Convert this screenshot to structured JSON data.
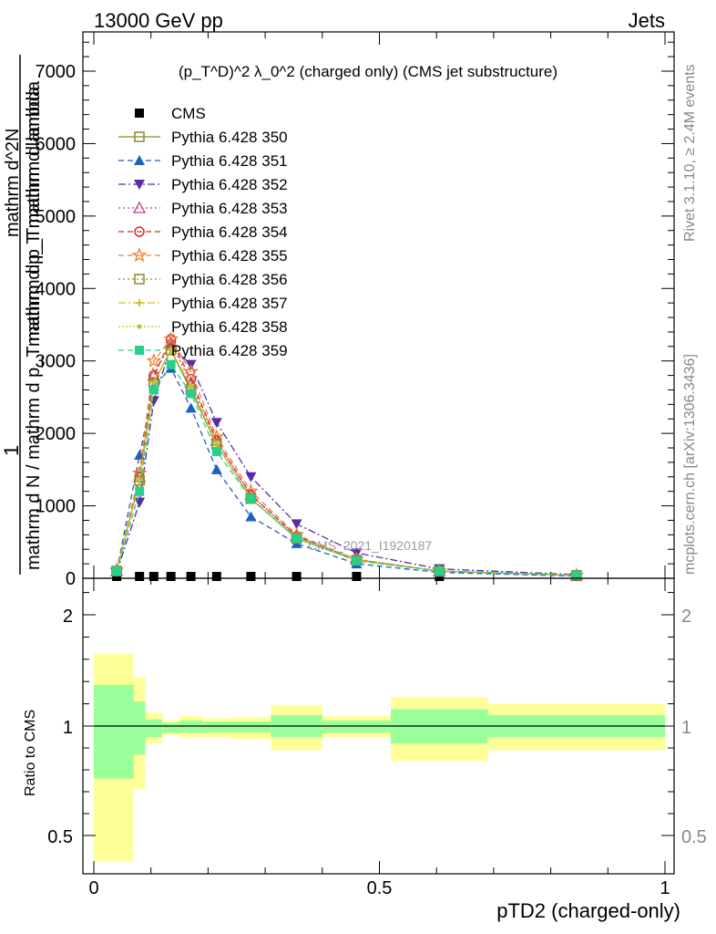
{
  "header": {
    "energy": "13000 GeV pp",
    "category": "Jets",
    "title": "(p_T^D)^2 λ_0^2 (charged only) (CMS jet substructure)",
    "side_rivet": "Rivet 3.1.10, ≥ 2.4M events",
    "side_mcplots": "mcplots.cern.ch [arXiv:1306.3436]",
    "watermark": "CMS_2021_I1920187"
  },
  "colors": {
    "CMS": "#000000",
    "350": "#8a8a2e",
    "351": "#1f5fbf",
    "352": "#5a2aa8",
    "353": "#c03a8a",
    "354": "#d42a2a",
    "355": "#f07d2a",
    "356": "#8a8a2e",
    "357": "#d4c02a",
    "358": "#b8c82a",
    "359": "#2acf8a",
    "band_outer": "#ffff99",
    "band_inner": "#99ff99"
  },
  "chart_data": [
    {
      "type": "line",
      "panel": "main",
      "ylabel": "1 / mathrm d N / mathrm d p_T mathrm d p_T mathrm d lambda   mathrm d^2N",
      "ylabel_parts": {
        "numerator_one": "1",
        "denominator": "mathrm d N / mathrm d p_T mathrm d p_T mathrm d lambda",
        "overlay_a": "mathrm d^2N",
        "overlay_b": "mathrm d p_T mathrm d lambda"
      },
      "ylim": [
        0,
        7500
      ],
      "xlim": [
        -0.02,
        1.02
      ],
      "yticks": [
        0,
        1000,
        2000,
        3000,
        4000,
        5000,
        6000,
        7000
      ],
      "ytick_labels": [
        "0",
        "1000",
        "2000",
        "3000",
        "4000",
        "5000",
        "6000",
        "7000"
      ],
      "x": [
        0.04,
        0.08,
        0.105,
        0.135,
        0.17,
        0.215,
        0.275,
        0.355,
        0.46,
        0.605,
        0.845
      ],
      "series": [
        {
          "name": "CMS",
          "marker": "square-filled",
          "values": [
            0,
            0,
            0,
            0,
            0,
            0,
            0,
            0,
            0,
            0,
            0
          ]
        },
        {
          "name": "Pythia 6.428 350",
          "marker": "square-open",
          "dash": "",
          "values": [
            100,
            1350,
            2700,
            3150,
            2600,
            1850,
            1100,
            550,
            250,
            100,
            40
          ]
        },
        {
          "name": "Pythia 6.428 351",
          "marker": "triangle-up",
          "dash": "6,4",
          "values": [
            100,
            1700,
            2650,
            2900,
            2350,
            1500,
            850,
            480,
            200,
            80,
            30
          ]
        },
        {
          "name": "Pythia 6.428 352",
          "marker": "triangle-down",
          "dash": "8,3,2,3",
          "values": [
            80,
            1050,
            2450,
            3200,
            2950,
            2150,
            1400,
            750,
            350,
            130,
            50
          ]
        },
        {
          "name": "Pythia 6.428 353",
          "marker": "triangle-open",
          "dash": "2,3",
          "values": [
            100,
            1400,
            2800,
            3250,
            2700,
            1900,
            1150,
            580,
            260,
            100,
            40
          ]
        },
        {
          "name": "Pythia 6.428 354",
          "marker": "circle-open",
          "dash": "6,4",
          "values": [
            100,
            1400,
            2800,
            3300,
            2750,
            1900,
            1150,
            580,
            260,
            100,
            40
          ]
        },
        {
          "name": "Pythia 6.428 355",
          "marker": "star",
          "dash": "6,4",
          "values": [
            110,
            1450,
            3000,
            3300,
            2850,
            1950,
            1200,
            600,
            260,
            100,
            40
          ]
        },
        {
          "name": "Pythia 6.428 356",
          "marker": "square-open",
          "dash": "2,3",
          "values": [
            100,
            1350,
            2700,
            3150,
            2600,
            1850,
            1100,
            550,
            250,
            100,
            40
          ]
        },
        {
          "name": "Pythia 6.428 357",
          "marker": "cross-small",
          "dash": "8,3,2,3",
          "values": [
            100,
            1350,
            2700,
            3150,
            2650,
            1850,
            1100,
            560,
            250,
            100,
            40
          ]
        },
        {
          "name": "Pythia 6.428 358",
          "marker": "dot",
          "dash": "2,2",
          "values": [
            100,
            1350,
            2700,
            3150,
            2650,
            1850,
            1100,
            560,
            250,
            100,
            40
          ]
        },
        {
          "name": "Pythia 6.428 359",
          "marker": "square-filled",
          "dash": "6,4",
          "values": [
            100,
            1200,
            2600,
            2950,
            2550,
            1750,
            1100,
            550,
            240,
            100,
            40
          ]
        }
      ]
    },
    {
      "type": "area",
      "panel": "ratio",
      "ylabel": "Ratio to CMS",
      "xlabel": "pTD2 (charged-only)",
      "ylim": [
        0.35,
        2.3
      ],
      "xlim": [
        -0.02,
        1.02
      ],
      "yticks": [
        0.5,
        1,
        2
      ],
      "ytick_labels": [
        "0.5",
        "1",
        "2"
      ],
      "xticks": [
        0,
        0.5,
        1
      ],
      "xtick_labels": [
        "0",
        "0.5",
        "1"
      ],
      "reference": 1,
      "bins": [
        {
          "lo": 0.0,
          "hi": 0.07,
          "outer": [
            0.38,
            1.65
          ],
          "inner": [
            0.76,
            1.37
          ]
        },
        {
          "lo": 0.07,
          "hi": 0.09,
          "outer": [
            0.71,
            1.44
          ],
          "inner": [
            0.87,
            1.22
          ]
        },
        {
          "lo": 0.09,
          "hi": 0.12,
          "outer": [
            0.92,
            1.12
          ],
          "inner": [
            0.95,
            1.06
          ]
        },
        {
          "lo": 0.12,
          "hi": 0.15,
          "outer": [
            0.96,
            1.05
          ],
          "inner": [
            0.97,
            1.03
          ]
        },
        {
          "lo": 0.15,
          "hi": 0.19,
          "outer": [
            0.95,
            1.09
          ],
          "inner": [
            0.97,
            1.05
          ]
        },
        {
          "lo": 0.19,
          "hi": 0.24,
          "outer": [
            0.95,
            1.07
          ],
          "inner": [
            0.97,
            1.04
          ]
        },
        {
          "lo": 0.24,
          "hi": 0.31,
          "outer": [
            0.94,
            1.08
          ],
          "inner": [
            0.97,
            1.04
          ]
        },
        {
          "lo": 0.31,
          "hi": 0.4,
          "outer": [
            0.89,
            1.19
          ],
          "inner": [
            0.95,
            1.1
          ]
        },
        {
          "lo": 0.4,
          "hi": 0.52,
          "outer": [
            0.95,
            1.09
          ],
          "inner": [
            0.97,
            1.05
          ]
        },
        {
          "lo": 0.52,
          "hi": 0.69,
          "outer": [
            0.84,
            1.26
          ],
          "inner": [
            0.92,
            1.15
          ]
        },
        {
          "lo": 0.69,
          "hi": 1.0,
          "outer": [
            0.89,
            1.2
          ],
          "inner": [
            0.95,
            1.1
          ]
        }
      ]
    }
  ]
}
